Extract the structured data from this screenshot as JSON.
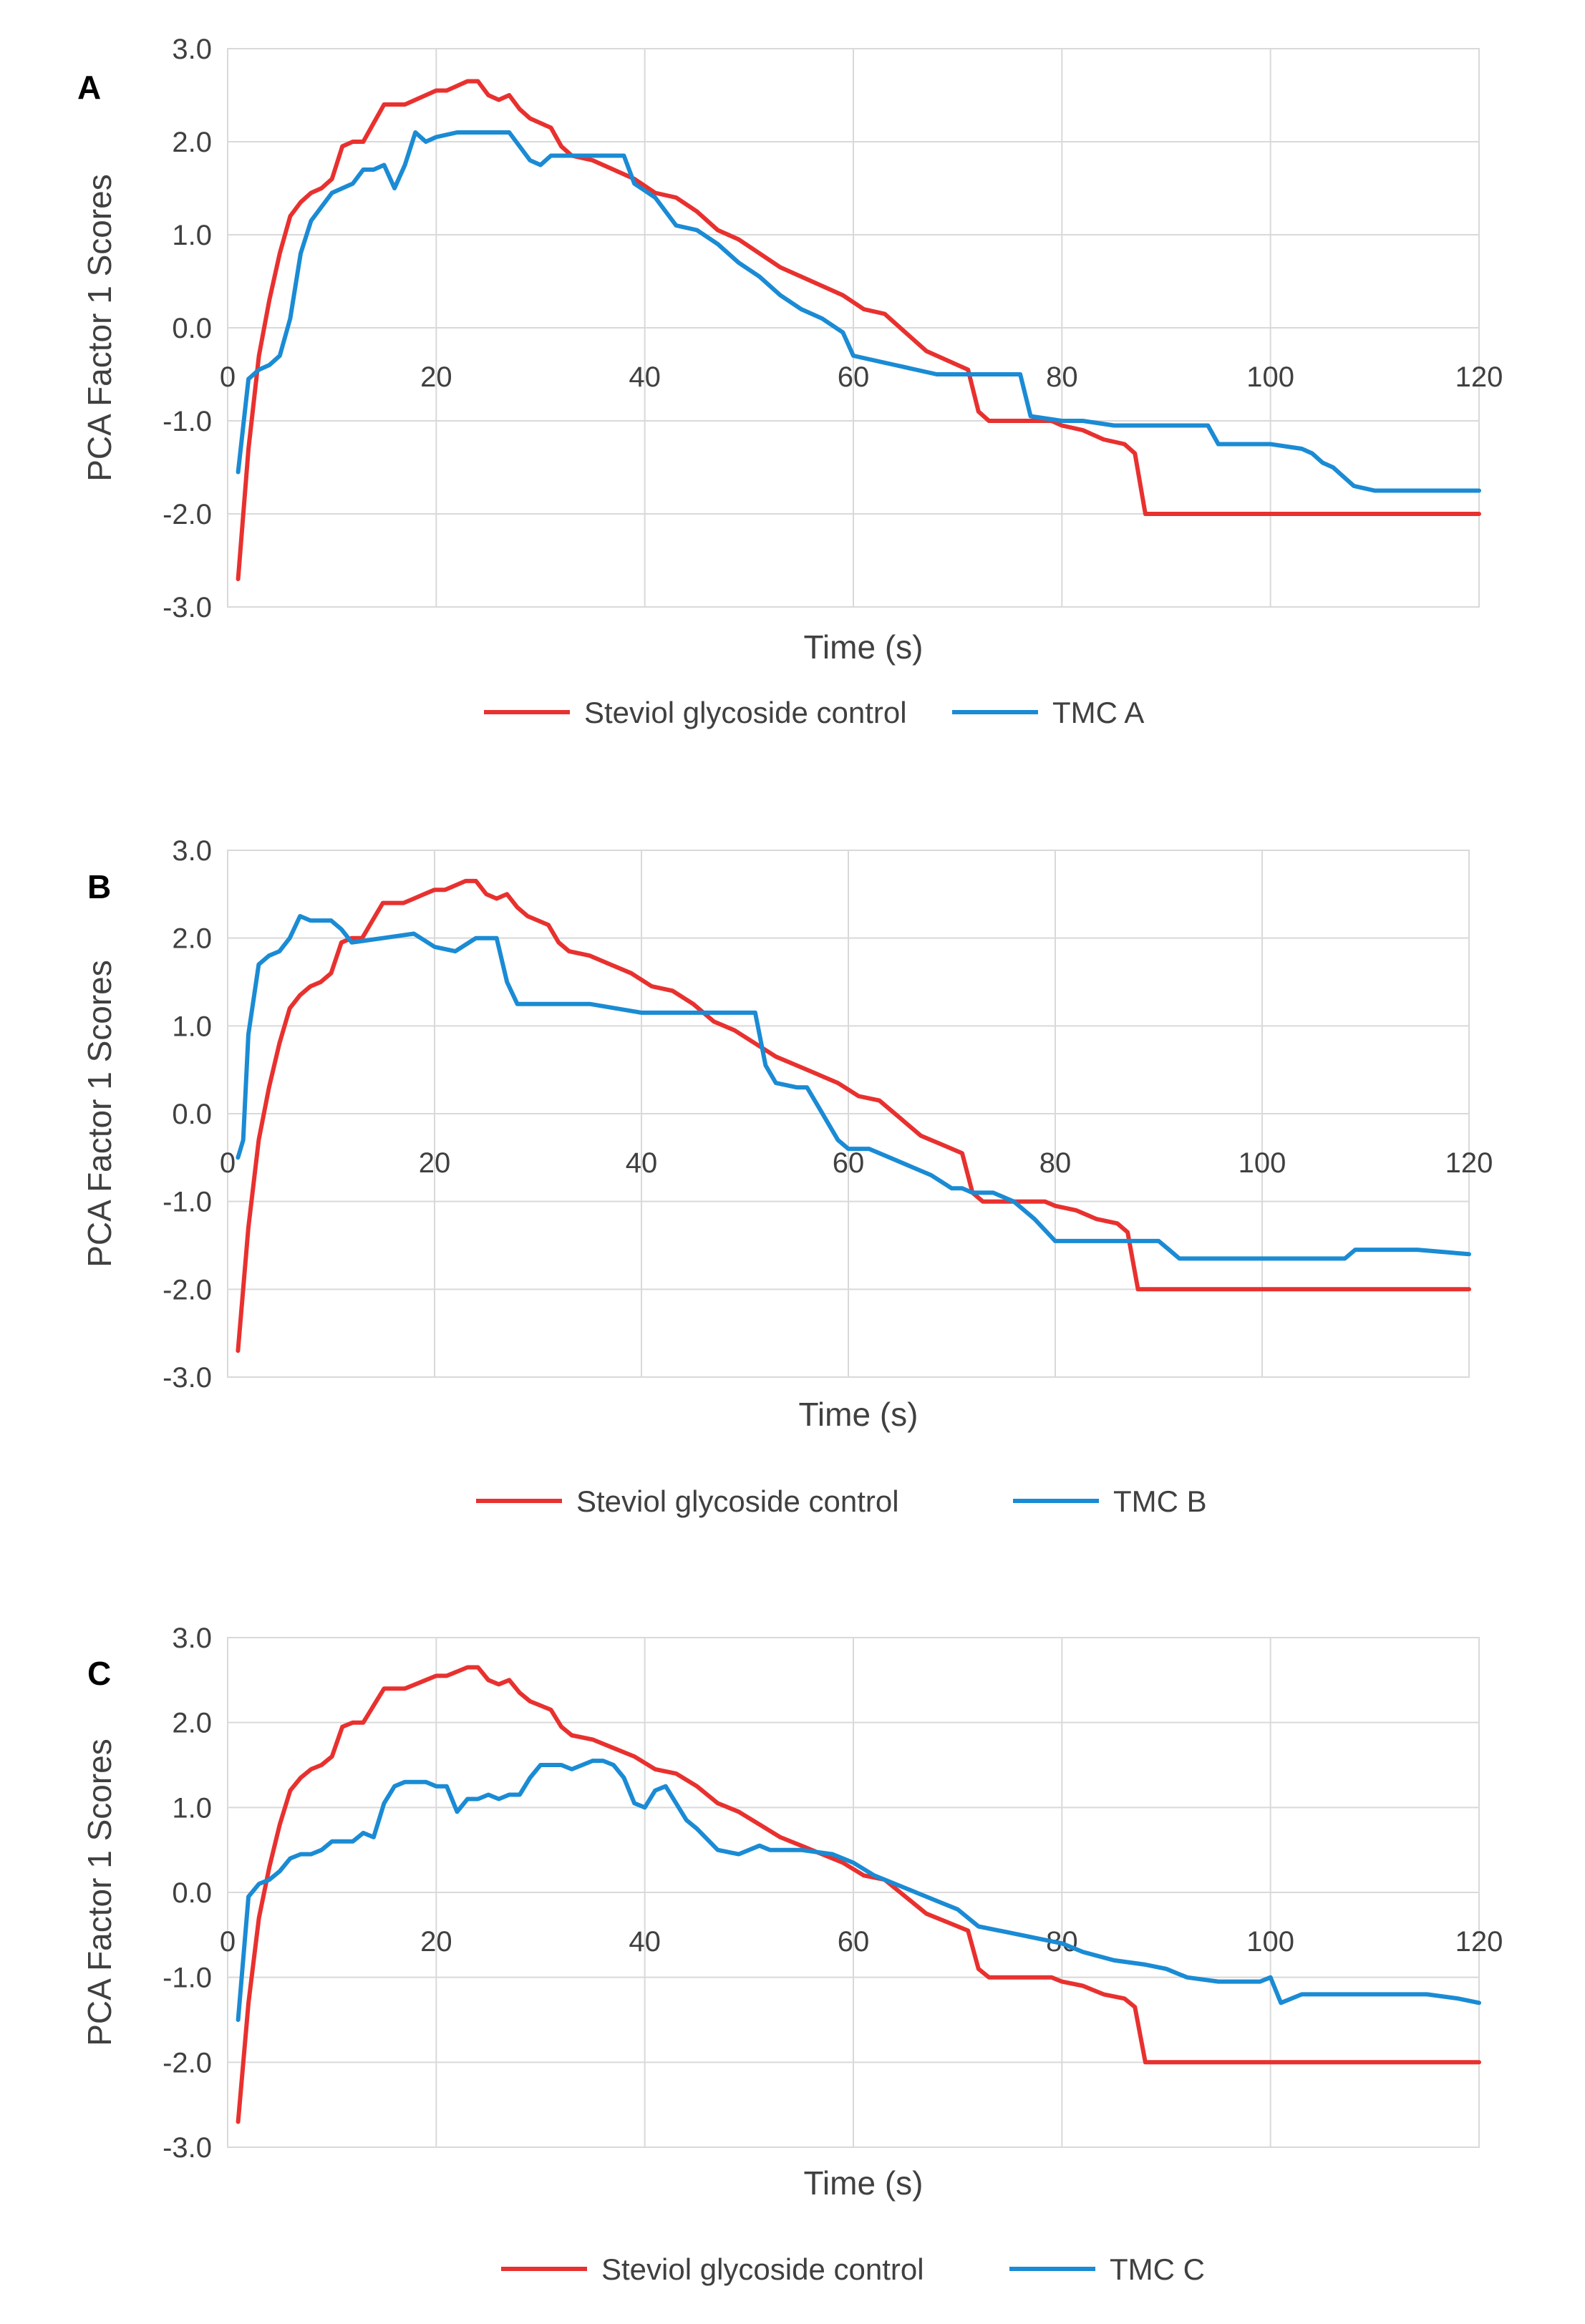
{
  "chart_data": [
    {
      "type": "line",
      "panel_label": "A",
      "xlabel": "Time (s)",
      "ylabel": "PCA Factor 1 Scores",
      "xlim": [
        0,
        120
      ],
      "ylim": [
        -3.0,
        3.0
      ],
      "x_ticks": [
        "0",
        "20",
        "40",
        "60",
        "80",
        "100",
        "120"
      ],
      "y_ticks": [
        "3.0",
        "2.0",
        "1.0",
        "0.0",
        "-1.0",
        "-2.0",
        "-3.0"
      ],
      "grid": true,
      "legend_position": "bottom",
      "series": [
        {
          "name": "Steviol glycoside control",
          "color": "#e8312f",
          "x": [
            1,
            2,
            3,
            4,
            5,
            6,
            7,
            8,
            9,
            10,
            11,
            12,
            13,
            14,
            15,
            16,
            17,
            18,
            19,
            20,
            21,
            22,
            23,
            24,
            25,
            26,
            27,
            28,
            29,
            30,
            31,
            32,
            33,
            35,
            37,
            39,
            41,
            43,
            45,
            47,
            49,
            51,
            53,
            55,
            57,
            59,
            61,
            63,
            65,
            67,
            69,
            71,
            72,
            73,
            76,
            79,
            80,
            82,
            84,
            86,
            87,
            88,
            90,
            95,
            100,
            110,
            120
          ],
          "values": [
            -2.7,
            -1.3,
            -0.3,
            0.3,
            0.8,
            1.2,
            1.35,
            1.45,
            1.5,
            1.6,
            1.95,
            2.0,
            2.0,
            2.2,
            2.4,
            2.4,
            2.4,
            2.45,
            2.5,
            2.55,
            2.55,
            2.6,
            2.65,
            2.65,
            2.5,
            2.45,
            2.5,
            2.35,
            2.25,
            2.2,
            2.15,
            1.95,
            1.85,
            1.8,
            1.7,
            1.6,
            1.45,
            1.4,
            1.25,
            1.05,
            0.95,
            0.8,
            0.65,
            0.55,
            0.45,
            0.35,
            0.2,
            0.15,
            -0.05,
            -0.25,
            -0.35,
            -0.45,
            -0.9,
            -1.0,
            -1.0,
            -1.0,
            -1.05,
            -1.1,
            -1.2,
            -1.25,
            -1.35,
            -2.0,
            -2.0,
            -2.0,
            -2.0,
            -2.0,
            -2.0
          ]
        },
        {
          "name": "TMC A",
          "color": "#1a8bd4",
          "x": [
            1,
            2,
            3,
            4,
            5,
            6,
            7,
            8,
            9,
            10,
            11,
            12,
            13,
            14,
            15,
            16,
            17,
            18,
            19,
            20,
            22,
            25,
            27,
            29,
            30,
            31,
            32,
            33,
            36,
            38,
            39,
            41,
            43,
            45,
            47,
            49,
            51,
            53,
            55,
            57,
            59,
            60,
            62,
            64,
            66,
            68,
            70,
            72,
            75,
            76,
            77,
            80,
            82,
            85,
            90,
            94,
            95,
            100,
            103,
            104,
            105,
            106,
            107,
            108,
            110,
            115,
            120
          ],
          "values": [
            -1.55,
            -0.55,
            -0.45,
            -0.4,
            -0.3,
            0.1,
            0.8,
            1.15,
            1.3,
            1.45,
            1.5,
            1.55,
            1.7,
            1.7,
            1.75,
            1.5,
            1.75,
            2.1,
            2.0,
            2.05,
            2.1,
            2.1,
            2.1,
            1.8,
            1.75,
            1.85,
            1.85,
            1.85,
            1.85,
            1.85,
            1.55,
            1.4,
            1.1,
            1.05,
            0.9,
            0.7,
            0.55,
            0.35,
            0.2,
            0.1,
            -0.05,
            -0.3,
            -0.35,
            -0.4,
            -0.45,
            -0.5,
            -0.5,
            -0.5,
            -0.5,
            -0.5,
            -0.95,
            -1.0,
            -1.0,
            -1.05,
            -1.05,
            -1.05,
            -1.25,
            -1.25,
            -1.3,
            -1.35,
            -1.45,
            -1.5,
            -1.6,
            -1.7,
            -1.75,
            -1.75,
            -1.75
          ]
        }
      ]
    },
    {
      "type": "line",
      "panel_label": "B",
      "xlabel": "Time (s)",
      "ylabel": "PCA Factor 1 Scores",
      "xlim": [
        0,
        120
      ],
      "ylim": [
        -3.0,
        3.0
      ],
      "x_ticks": [
        "0",
        "20",
        "40",
        "60",
        "80",
        "100",
        "120"
      ],
      "y_ticks": [
        "3.0",
        "2.0",
        "1.0",
        "0.0",
        "-1.0",
        "-2.0",
        "-3.0"
      ],
      "grid": true,
      "legend_position": "bottom",
      "series": [
        {
          "name": "Steviol glycoside control",
          "color": "#e8312f",
          "x": [
            1,
            2,
            3,
            4,
            5,
            6,
            7,
            8,
            9,
            10,
            11,
            12,
            13,
            14,
            15,
            16,
            17,
            18,
            19,
            20,
            21,
            22,
            23,
            24,
            25,
            26,
            27,
            28,
            29,
            30,
            31,
            32,
            33,
            35,
            37,
            39,
            41,
            43,
            45,
            47,
            49,
            51,
            53,
            55,
            57,
            59,
            61,
            63,
            65,
            67,
            69,
            71,
            72,
            73,
            76,
            79,
            80,
            82,
            84,
            86,
            87,
            88,
            90,
            95,
            100,
            110,
            120
          ],
          "values": [
            -2.7,
            -1.3,
            -0.3,
            0.3,
            0.8,
            1.2,
            1.35,
            1.45,
            1.5,
            1.6,
            1.95,
            2.0,
            2.0,
            2.2,
            2.4,
            2.4,
            2.4,
            2.45,
            2.5,
            2.55,
            2.55,
            2.6,
            2.65,
            2.65,
            2.5,
            2.45,
            2.5,
            2.35,
            2.25,
            2.2,
            2.15,
            1.95,
            1.85,
            1.8,
            1.7,
            1.6,
            1.45,
            1.4,
            1.25,
            1.05,
            0.95,
            0.8,
            0.65,
            0.55,
            0.45,
            0.35,
            0.2,
            0.15,
            -0.05,
            -0.25,
            -0.35,
            -0.45,
            -0.9,
            -1.0,
            -1.0,
            -1.0,
            -1.05,
            -1.1,
            -1.2,
            -1.25,
            -1.35,
            -2.0,
            -2.0,
            -2.0,
            -2.0,
            -2.0,
            -2.0
          ]
        },
        {
          "name": "TMC B",
          "color": "#1a8bd4",
          "x": [
            1,
            1.5,
            2,
            3,
            4,
            5,
            6,
            7,
            8,
            9,
            10,
            11,
            12,
            15,
            18,
            20,
            22,
            24,
            26,
            27,
            28,
            30,
            35,
            40,
            45,
            49,
            50,
            51,
            52,
            53,
            55,
            56,
            57,
            58,
            59,
            60,
            62,
            64,
            66,
            68,
            70,
            71,
            72,
            74,
            76,
            78,
            80,
            85,
            90,
            91,
            92,
            95,
            100,
            105,
            108,
            109,
            110,
            115,
            120
          ],
          "values": [
            -0.5,
            -0.3,
            0.9,
            1.7,
            1.8,
            1.85,
            2.0,
            2.25,
            2.2,
            2.2,
            2.2,
            2.1,
            1.95,
            2.0,
            2.05,
            1.9,
            1.85,
            2.0,
            2.0,
            1.5,
            1.25,
            1.25,
            1.25,
            1.15,
            1.15,
            1.15,
            1.15,
            1.15,
            0.55,
            0.35,
            0.3,
            0.3,
            0.1,
            -0.1,
            -0.3,
            -0.4,
            -0.4,
            -0.5,
            -0.6,
            -0.7,
            -0.85,
            -0.85,
            -0.9,
            -0.9,
            -1.0,
            -1.2,
            -1.45,
            -1.45,
            -1.45,
            -1.55,
            -1.65,
            -1.65,
            -1.65,
            -1.65,
            -1.65,
            -1.55,
            -1.55,
            -1.55,
            -1.6
          ]
        }
      ]
    },
    {
      "type": "line",
      "panel_label": "C",
      "xlabel": "Time (s)",
      "ylabel": "PCA Factor 1 Scores",
      "xlim": [
        0,
        120
      ],
      "ylim": [
        -3.0,
        3.0
      ],
      "x_ticks": [
        "0",
        "20",
        "40",
        "60",
        "80",
        "100",
        "120"
      ],
      "y_ticks": [
        "3.0",
        "2.0",
        "1.0",
        "0.0",
        "-1.0",
        "-2.0",
        "-3.0"
      ],
      "grid": true,
      "legend_position": "bottom",
      "series": [
        {
          "name": "Steviol glycoside control",
          "color": "#e8312f",
          "x": [
            1,
            2,
            3,
            4,
            5,
            6,
            7,
            8,
            9,
            10,
            11,
            12,
            13,
            14,
            15,
            16,
            17,
            18,
            19,
            20,
            21,
            22,
            23,
            24,
            25,
            26,
            27,
            28,
            29,
            30,
            31,
            32,
            33,
            35,
            37,
            39,
            41,
            43,
            45,
            47,
            49,
            51,
            53,
            55,
            57,
            59,
            61,
            63,
            65,
            67,
            69,
            71,
            72,
            73,
            76,
            79,
            80,
            82,
            84,
            86,
            87,
            88,
            90,
            95,
            100,
            110,
            120
          ],
          "values": [
            -2.7,
            -1.3,
            -0.3,
            0.3,
            0.8,
            1.2,
            1.35,
            1.45,
            1.5,
            1.6,
            1.95,
            2.0,
            2.0,
            2.2,
            2.4,
            2.4,
            2.4,
            2.45,
            2.5,
            2.55,
            2.55,
            2.6,
            2.65,
            2.65,
            2.5,
            2.45,
            2.5,
            2.35,
            2.25,
            2.2,
            2.15,
            1.95,
            1.85,
            1.8,
            1.7,
            1.6,
            1.45,
            1.4,
            1.25,
            1.05,
            0.95,
            0.8,
            0.65,
            0.55,
            0.45,
            0.35,
            0.2,
            0.15,
            -0.05,
            -0.25,
            -0.35,
            -0.45,
            -0.9,
            -1.0,
            -1.0,
            -1.0,
            -1.05,
            -1.1,
            -1.2,
            -1.25,
            -1.35,
            -2.0,
            -2.0,
            -2.0,
            -2.0,
            -2.0,
            -2.0
          ]
        },
        {
          "name": "TMC C",
          "color": "#1a8bd4",
          "x": [
            1,
            2,
            3,
            4,
            5,
            6,
            7,
            8,
            9,
            10,
            11,
            12,
            13,
            14,
            15,
            16,
            17,
            18,
            19,
            20,
            21,
            22,
            23,
            24,
            25,
            26,
            27,
            28,
            29,
            30,
            31,
            32,
            33,
            34,
            35,
            36,
            37,
            38,
            39,
            40,
            41,
            42,
            43,
            44,
            45,
            47,
            49,
            51,
            52,
            55,
            58,
            60,
            62,
            64,
            66,
            68,
            70,
            72,
            74,
            76,
            78,
            80,
            82,
            85,
            88,
            90,
            92,
            95,
            99,
            100,
            101,
            103,
            105,
            110,
            115,
            118,
            120
          ],
          "values": [
            -1.5,
            -0.05,
            0.1,
            0.15,
            0.25,
            0.4,
            0.45,
            0.45,
            0.5,
            0.6,
            0.6,
            0.6,
            0.7,
            0.65,
            1.05,
            1.25,
            1.3,
            1.3,
            1.3,
            1.25,
            1.25,
            0.95,
            1.1,
            1.1,
            1.15,
            1.1,
            1.15,
            1.15,
            1.35,
            1.5,
            1.5,
            1.5,
            1.45,
            1.5,
            1.55,
            1.55,
            1.5,
            1.35,
            1.05,
            1.0,
            1.2,
            1.25,
            1.05,
            0.85,
            0.75,
            0.5,
            0.45,
            0.55,
            0.5,
            0.5,
            0.45,
            0.35,
            0.2,
            0.1,
            0.0,
            -0.1,
            -0.2,
            -0.4,
            -0.45,
            -0.5,
            -0.55,
            -0.6,
            -0.7,
            -0.8,
            -0.85,
            -0.9,
            -1.0,
            -1.05,
            -1.05,
            -1.0,
            -1.3,
            -1.2,
            -1.2,
            -1.2,
            -1.2,
            -1.25,
            -1.3
          ]
        }
      ]
    }
  ]
}
